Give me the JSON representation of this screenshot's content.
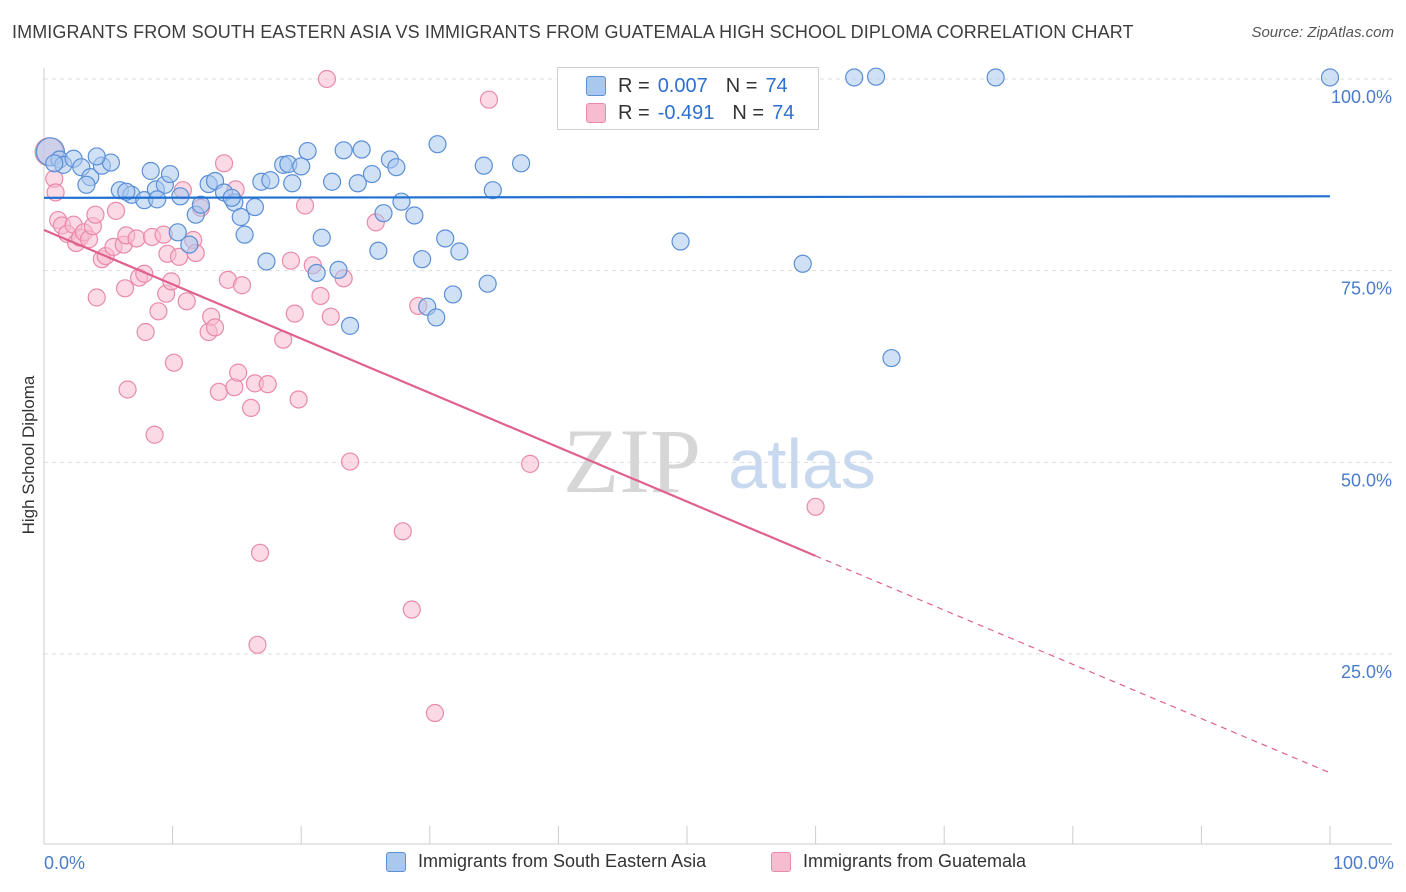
{
  "title": "IMMIGRANTS FROM SOUTH EASTERN ASIA VS IMMIGRANTS FROM GUATEMALA HIGH SCHOOL DIPLOMA CORRELATION CHART",
  "source": "Source: ZipAtlas.com",
  "watermark": {
    "zip": "ZIP",
    "atlas": "atlas"
  },
  "colors": {
    "blue_fill": "#aac8ee",
    "blue_stroke": "#5b8fd6",
    "blue_line": "#1f6fd1",
    "pink_fill": "#f7bcd0",
    "pink_stroke": "#e98aa9",
    "pink_line": "#e0608f",
    "tick_text": "#4a7cc9",
    "grid": "#dddddd"
  },
  "legend": {
    "items": [
      {
        "name": "Immigrants from South Eastern Asia",
        "r_label": "R =",
        "r": "0.007",
        "n_label": "N =",
        "n": "74"
      },
      {
        "name": "Immigrants from Guatemala",
        "r_label": "R =",
        "r": "-0.491",
        "n_label": "N =",
        "n": "74"
      }
    ]
  },
  "chart_data": {
    "type": "scatter",
    "title": "IMMIGRANTS FROM SOUTH EASTERN ASIA VS IMMIGRANTS FROM GUATEMALA HIGH SCHOOL DIPLOMA CORRELATION CHART",
    "xlabel": "",
    "ylabel": "High School Diploma",
    "xlim": [
      0,
      100
    ],
    "ylim": [
      0,
      102
    ],
    "x_tick_labels": [
      "0.0%",
      "100.0%"
    ],
    "y_ticks": [
      25,
      50,
      75,
      100
    ],
    "y_tick_labels": [
      "25.0%",
      "50.0%",
      "75.0%",
      "100.0%"
    ],
    "grid": true,
    "legend_position": "top-center",
    "series": [
      {
        "name": "Immigrants from South Eastern Asia",
        "color": "blue",
        "trend": {
          "x0": 0,
          "y0": 84.5,
          "x1": 100,
          "y1": 84.7
        },
        "points": [
          [
            0.5,
            90.5
          ],
          [
            1.2,
            89.5
          ],
          [
            1.5,
            88.8
          ],
          [
            2.3,
            89.6
          ],
          [
            2.9,
            88.5
          ],
          [
            3.6,
            87.2
          ],
          [
            3.3,
            86.2
          ],
          [
            4.5,
            88.7
          ],
          [
            5.2,
            89.1
          ],
          [
            5.9,
            85.5
          ],
          [
            6.8,
            84.9
          ],
          [
            6.4,
            85.3
          ],
          [
            7.8,
            84.2
          ],
          [
            8.3,
            88.0
          ],
          [
            8.7,
            85.6
          ],
          [
            9.4,
            86.2
          ],
          [
            9.8,
            87.6
          ],
          [
            10.6,
            84.7
          ],
          [
            10.4,
            80.0
          ],
          [
            11.3,
            78.4
          ],
          [
            11.8,
            82.3
          ],
          [
            12.2,
            83.6
          ],
          [
            12.8,
            86.3
          ],
          [
            13.3,
            86.7
          ],
          [
            14.0,
            85.2
          ],
          [
            14.8,
            83.9
          ],
          [
            14.6,
            84.5
          ],
          [
            15.3,
            82.0
          ],
          [
            15.6,
            79.7
          ],
          [
            16.4,
            83.3
          ],
          [
            16.9,
            86.6
          ],
          [
            17.6,
            86.8
          ],
          [
            17.3,
            76.2
          ],
          [
            18.6,
            88.8
          ],
          [
            19.3,
            86.4
          ],
          [
            19.0,
            88.9
          ],
          [
            20.0,
            88.6
          ],
          [
            20.5,
            90.6
          ],
          [
            21.2,
            74.7
          ],
          [
            21.6,
            79.3
          ],
          [
            22.4,
            86.6
          ],
          [
            22.9,
            75.1
          ],
          [
            23.3,
            90.7
          ],
          [
            23.8,
            67.8
          ],
          [
            24.4,
            86.4
          ],
          [
            24.7,
            90.8
          ],
          [
            25.5,
            87.6
          ],
          [
            26.0,
            77.6
          ],
          [
            26.4,
            82.5
          ],
          [
            26.9,
            89.5
          ],
          [
            27.4,
            88.5
          ],
          [
            27.8,
            84.0
          ],
          [
            28.8,
            82.2
          ],
          [
            29.4,
            76.5
          ],
          [
            29.8,
            70.3
          ],
          [
            30.6,
            91.5
          ],
          [
            30.5,
            68.9
          ],
          [
            31.2,
            79.2
          ],
          [
            31.8,
            71.9
          ],
          [
            32.3,
            77.5
          ],
          [
            34.2,
            88.7
          ],
          [
            34.5,
            73.3
          ],
          [
            34.9,
            85.5
          ],
          [
            37.1,
            89.0
          ],
          [
            49.5,
            78.8
          ],
          [
            59.0,
            75.9
          ],
          [
            63.0,
            100.2
          ],
          [
            64.7,
            100.3
          ],
          [
            65.9,
            63.6
          ],
          [
            74.0,
            100.2
          ],
          [
            100.0,
            100.2
          ],
          [
            0.8,
            89.0
          ],
          [
            4.1,
            89.9
          ],
          [
            8.8,
            84.3
          ]
        ]
      },
      {
        "name": "Immigrants from Guatemala",
        "color": "pink",
        "trend": {
          "x0": 0,
          "y0": 80.3,
          "x1": 60,
          "y1": 37.8
        },
        "trend_dashed": {
          "x0": 60,
          "y0": 37.8,
          "x1": 100,
          "y1": 9.5
        },
        "points": [
          [
            0.4,
            90.5
          ],
          [
            0.8,
            87.0
          ],
          [
            0.9,
            85.2
          ],
          [
            1.1,
            81.6
          ],
          [
            1.4,
            80.9
          ],
          [
            1.8,
            79.8
          ],
          [
            2.3,
            81.0
          ],
          [
            2.5,
            78.6
          ],
          [
            2.8,
            79.3
          ],
          [
            3.1,
            80.0
          ],
          [
            3.5,
            79.1
          ],
          [
            3.8,
            80.8
          ],
          [
            4.0,
            82.3
          ],
          [
            4.1,
            71.5
          ],
          [
            4.5,
            76.5
          ],
          [
            4.8,
            76.9
          ],
          [
            5.4,
            78.1
          ],
          [
            5.6,
            82.8
          ],
          [
            6.2,
            78.4
          ],
          [
            6.4,
            79.6
          ],
          [
            6.3,
            72.7
          ],
          [
            6.5,
            59.5
          ],
          [
            7.2,
            79.2
          ],
          [
            7.4,
            74.1
          ],
          [
            7.8,
            74.6
          ],
          [
            7.9,
            67.0
          ],
          [
            8.4,
            79.4
          ],
          [
            8.6,
            53.6
          ],
          [
            8.9,
            69.7
          ],
          [
            9.3,
            79.7
          ],
          [
            9.5,
            72.0
          ],
          [
            9.6,
            77.2
          ],
          [
            9.9,
            73.6
          ],
          [
            10.1,
            63.0
          ],
          [
            10.5,
            76.8
          ],
          [
            10.8,
            85.5
          ],
          [
            11.1,
            71.0
          ],
          [
            11.6,
            79.0
          ],
          [
            11.8,
            77.3
          ],
          [
            12.2,
            83.2
          ],
          [
            12.8,
            67.0
          ],
          [
            13.0,
            69.0
          ],
          [
            13.3,
            67.6
          ],
          [
            13.6,
            59.2
          ],
          [
            14.0,
            89.0
          ],
          [
            14.3,
            73.8
          ],
          [
            14.8,
            59.8
          ],
          [
            15.1,
            61.7
          ],
          [
            14.9,
            85.6
          ],
          [
            15.4,
            73.1
          ],
          [
            16.1,
            57.1
          ],
          [
            16.4,
            60.3
          ],
          [
            16.8,
            38.2
          ],
          [
            16.6,
            26.2
          ],
          [
            17.4,
            60.2
          ],
          [
            18.6,
            66.0
          ],
          [
            19.2,
            76.3
          ],
          [
            19.5,
            69.4
          ],
          [
            19.8,
            58.2
          ],
          [
            20.3,
            83.5
          ],
          [
            20.9,
            75.7
          ],
          [
            21.5,
            71.7
          ],
          [
            22.0,
            100.0
          ],
          [
            22.3,
            69.0
          ],
          [
            23.3,
            74.0
          ],
          [
            23.8,
            50.1
          ],
          [
            25.8,
            81.3
          ],
          [
            27.9,
            41.0
          ],
          [
            28.6,
            30.8
          ],
          [
            29.1,
            70.4
          ],
          [
            30.4,
            17.3
          ],
          [
            34.6,
            97.3
          ],
          [
            37.8,
            49.8
          ],
          [
            60.0,
            44.2
          ]
        ]
      }
    ]
  }
}
